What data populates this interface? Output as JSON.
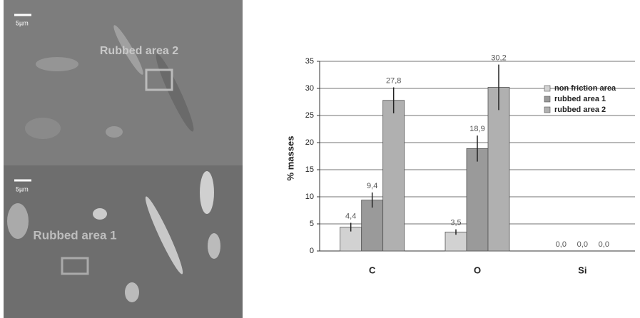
{
  "images": [
    {
      "scale": "5µm",
      "label": "Rubbed area 2"
    },
    {
      "scale": "5µm",
      "label": "Rubbed area 1"
    }
  ],
  "chart_data": {
    "type": "bar",
    "y_label": "% masses",
    "categories": [
      "C",
      "O",
      "Si"
    ],
    "series": [
      {
        "name": "non friction area",
        "color": "#d2d2d2",
        "values": [
          4.4,
          3.5,
          0.0
        ],
        "value_labels": [
          "4,4",
          "3,5",
          "0,0"
        ],
        "errors": [
          0.8,
          0.5,
          0
        ]
      },
      {
        "name": "rubbed area 1",
        "color": "#9a9a9a",
        "values": [
          9.4,
          18.9,
          0.0
        ],
        "value_labels": [
          "9,4",
          "18,9",
          "0,0"
        ],
        "errors": [
          1.4,
          2.4,
          0
        ]
      },
      {
        "name": "rubbed area 2",
        "color": "#b0b0b0",
        "values": [
          27.8,
          30.2,
          0.0
        ],
        "value_labels": [
          "27,8",
          "30,2",
          "0,0"
        ],
        "errors": [
          2.4,
          4.2,
          0
        ]
      }
    ],
    "ylim": [
      0,
      35
    ],
    "yticks": [
      0,
      5,
      10,
      15,
      20,
      25,
      30,
      35
    ],
    "grid": true,
    "legend": "upper right"
  }
}
